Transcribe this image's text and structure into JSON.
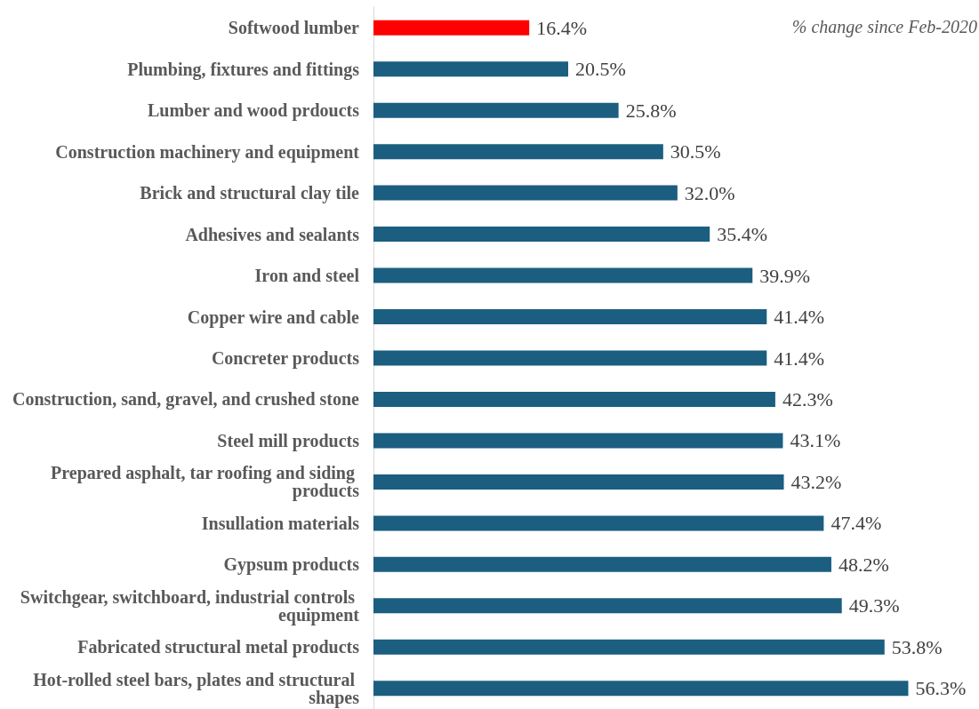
{
  "chart_data": {
    "type": "bar",
    "orientation": "horizontal",
    "subtitle": "% change since Feb-2020",
    "categories": [
      "Softwood lumber",
      "Plumbing, fixtures and fittings",
      "Lumber and wood prdoucts",
      "Construction machinery and equipment",
      "Brick and structural clay tile",
      "Adhesives and sealants",
      "Iron and steel",
      "Copper wire and cable",
      "Concreter products",
      "Construction, sand, gravel, and crushed stone",
      "Steel mill products",
      "Prepared asphalt, tar roofing and siding products",
      "Insullation materials",
      "Gypsum products",
      "Switchgear, switchboard, industrial controls equipment",
      "Fabricated structural metal products",
      "Hot-rolled steel bars, plates and structural shapes"
    ],
    "values": [
      16.4,
      20.5,
      25.8,
      30.5,
      32.0,
      35.4,
      39.9,
      41.4,
      41.4,
      42.3,
      43.1,
      43.2,
      47.4,
      48.2,
      49.3,
      53.8,
      56.3
    ],
    "value_labels": [
      "16.4%",
      "20.5%",
      "25.8%",
      "30.5%",
      "32.0%",
      "35.4%",
      "39.9%",
      "41.4%",
      "41.4%",
      "42.3%",
      "43.1%",
      "43.2%",
      "47.4%",
      "48.2%",
      "49.3%",
      "53.8%",
      "56.3%"
    ],
    "colors": [
      "#ff0000",
      "#1b5e80",
      "#1b5e80",
      "#1b5e80",
      "#1b5e80",
      "#1b5e80",
      "#1b5e80",
      "#1b5e80",
      "#1b5e80",
      "#1b5e80",
      "#1b5e80",
      "#1b5e80",
      "#1b5e80",
      "#1b5e80",
      "#1b5e80",
      "#1b5e80",
      "#1b5e80"
    ]
  }
}
